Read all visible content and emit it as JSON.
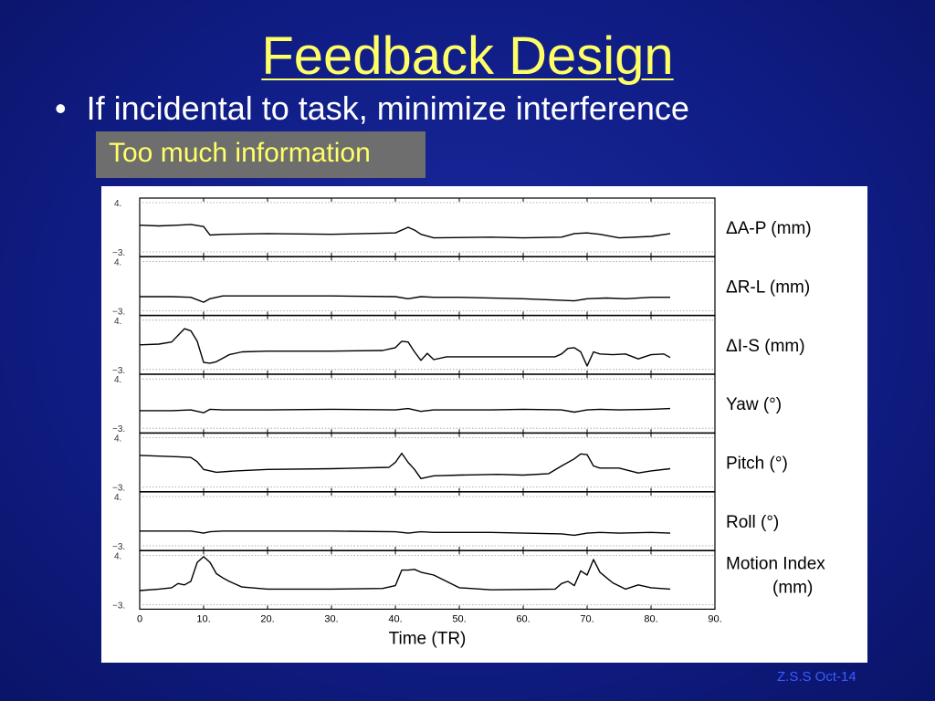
{
  "slide": {
    "title": "Feedback Design",
    "bullet_marker": "•",
    "bullet": "If incidental to task, minimize interference",
    "callout": "Too much information",
    "footer": "Z.S.S Oct-14"
  },
  "colors": {
    "title": "#ffff66",
    "callout_bg": "#6e6e6e",
    "footer": "#3a5cff"
  },
  "chart_data": {
    "type": "line",
    "xlabel": "Time (TR)",
    "xlim": [
      0,
      90
    ],
    "xticks": [
      "0",
      "10.",
      "20.",
      "30.",
      "40.",
      "50.",
      "60.",
      "70.",
      "80.",
      "90."
    ],
    "xtick_values": [
      0,
      10,
      20,
      30,
      40,
      50,
      60,
      70,
      80,
      90
    ],
    "ylim": [
      -3,
      4
    ],
    "ytick_labels": [
      "4.",
      "−3."
    ],
    "grid": false,
    "panels": [
      {
        "label": [
          "ΔA-P (mm)"
        ],
        "x": [
          0,
          3,
          6,
          8,
          10,
          11,
          13,
          20,
          30,
          40,
          42,
          43,
          44,
          46,
          55,
          60,
          66,
          68,
          70,
          72,
          75,
          80,
          83
        ],
        "values": [
          0.8,
          0.7,
          0.8,
          0.9,
          0.6,
          -0.6,
          -0.5,
          -0.4,
          -0.5,
          -0.3,
          0.5,
          0.1,
          -0.5,
          -1.0,
          -0.9,
          -1.0,
          -0.9,
          -0.4,
          -0.3,
          -0.5,
          -1.0,
          -0.8,
          -0.4
        ]
      },
      {
        "label": [
          "ΔR-L (mm)"
        ],
        "x": [
          0,
          5,
          8,
          10,
          11,
          13,
          20,
          30,
          40,
          42,
          44,
          46,
          50,
          60,
          68,
          70,
          73,
          76,
          80,
          83
        ],
        "values": [
          -1.0,
          -1.0,
          -1.1,
          -1.8,
          -1.3,
          -0.9,
          -0.9,
          -0.9,
          -1.0,
          -1.3,
          -1.0,
          -1.1,
          -1.1,
          -1.3,
          -1.6,
          -1.3,
          -1.2,
          -1.3,
          -1.1,
          -1.1
        ]
      },
      {
        "label": [
          "ΔI-S (mm)"
        ],
        "x": [
          0,
          3,
          5,
          7,
          8,
          9,
          10,
          11,
          12,
          14,
          16,
          20,
          30,
          38,
          40,
          41,
          42,
          43,
          44,
          45,
          46,
          48,
          55,
          65,
          66,
          67,
          68,
          69,
          70,
          71,
          72,
          74,
          76,
          78,
          80,
          82,
          83
        ],
        "values": [
          0.5,
          0.6,
          0.9,
          2.8,
          2.5,
          1.0,
          -2.0,
          -2.1,
          -1.9,
          -0.9,
          -0.5,
          -0.4,
          -0.4,
          -0.3,
          0.1,
          1.0,
          0.9,
          -0.5,
          -1.7,
          -0.7,
          -1.6,
          -1.2,
          -1.2,
          -1.2,
          -0.8,
          0.0,
          0.1,
          -0.5,
          -2.5,
          -0.5,
          -0.8,
          -0.9,
          -0.8,
          -1.5,
          -0.9,
          -0.8,
          -1.3
        ]
      },
      {
        "label": [
          "Yaw (°)"
        ],
        "x": [
          0,
          5,
          8,
          10,
          11,
          13,
          20,
          30,
          40,
          42,
          44,
          46,
          55,
          60,
          66,
          68,
          70,
          72,
          75,
          80,
          83
        ],
        "values": [
          -0.5,
          -0.5,
          -0.4,
          -0.8,
          -0.3,
          -0.4,
          -0.4,
          -0.3,
          -0.4,
          -0.2,
          -0.6,
          -0.4,
          -0.4,
          -0.3,
          -0.4,
          -0.7,
          -0.4,
          -0.3,
          -0.4,
          -0.3,
          -0.2
        ]
      },
      {
        "label": [
          "Pitch (°)"
        ],
        "x": [
          0,
          3,
          6,
          8,
          9,
          10,
          12,
          15,
          20,
          30,
          39,
          40,
          41,
          42,
          43,
          44,
          46,
          50,
          56,
          60,
          64,
          66,
          68,
          69,
          70,
          71,
          72,
          75,
          78,
          80,
          83
        ],
        "values": [
          1.5,
          1.4,
          1.3,
          1.2,
          0.6,
          -0.5,
          -0.9,
          -0.7,
          -0.5,
          -0.4,
          -0.2,
          0.5,
          1.8,
          0.5,
          -0.5,
          -1.8,
          -1.4,
          -1.3,
          -1.2,
          -1.3,
          -1.1,
          0.0,
          1.0,
          1.7,
          1.6,
          0.0,
          -0.3,
          -0.3,
          -1.0,
          -0.7,
          -0.4
        ]
      },
      {
        "label": [
          "Roll (°)"
        ],
        "x": [
          0,
          5,
          8,
          10,
          11,
          13,
          20,
          30,
          40,
          42,
          44,
          46,
          55,
          60,
          66,
          68,
          70,
          72,
          75,
          80,
          83
        ],
        "values": [
          -0.9,
          -0.9,
          -0.9,
          -1.2,
          -1.0,
          -0.9,
          -0.9,
          -0.9,
          -1.0,
          -1.2,
          -1.0,
          -1.1,
          -1.1,
          -1.2,
          -1.3,
          -1.5,
          -1.2,
          -1.1,
          -1.2,
          -1.1,
          -1.2
        ]
      },
      {
        "label": [
          "Motion Index",
          "(mm)"
        ],
        "x": [
          0,
          3,
          5,
          6,
          7,
          8,
          9,
          10,
          11,
          12,
          13,
          14,
          16,
          20,
          30,
          38,
          40,
          41,
          42,
          43,
          44,
          46,
          50,
          55,
          65,
          66,
          67,
          68,
          69,
          70,
          71,
          72,
          74,
          76,
          78,
          80,
          83
        ],
        "values": [
          -1.0,
          -0.8,
          -0.6,
          0.0,
          -0.2,
          0.3,
          3.0,
          3.8,
          3.0,
          1.4,
          0.8,
          0.3,
          -0.5,
          -0.8,
          -0.8,
          -0.7,
          -0.3,
          1.9,
          1.9,
          2.0,
          1.6,
          1.2,
          -0.6,
          -0.9,
          -0.8,
          0.0,
          0.3,
          -0.3,
          1.8,
          1.2,
          3.4,
          1.6,
          0.1,
          -0.8,
          -0.2,
          -0.6,
          -0.8
        ]
      }
    ]
  }
}
